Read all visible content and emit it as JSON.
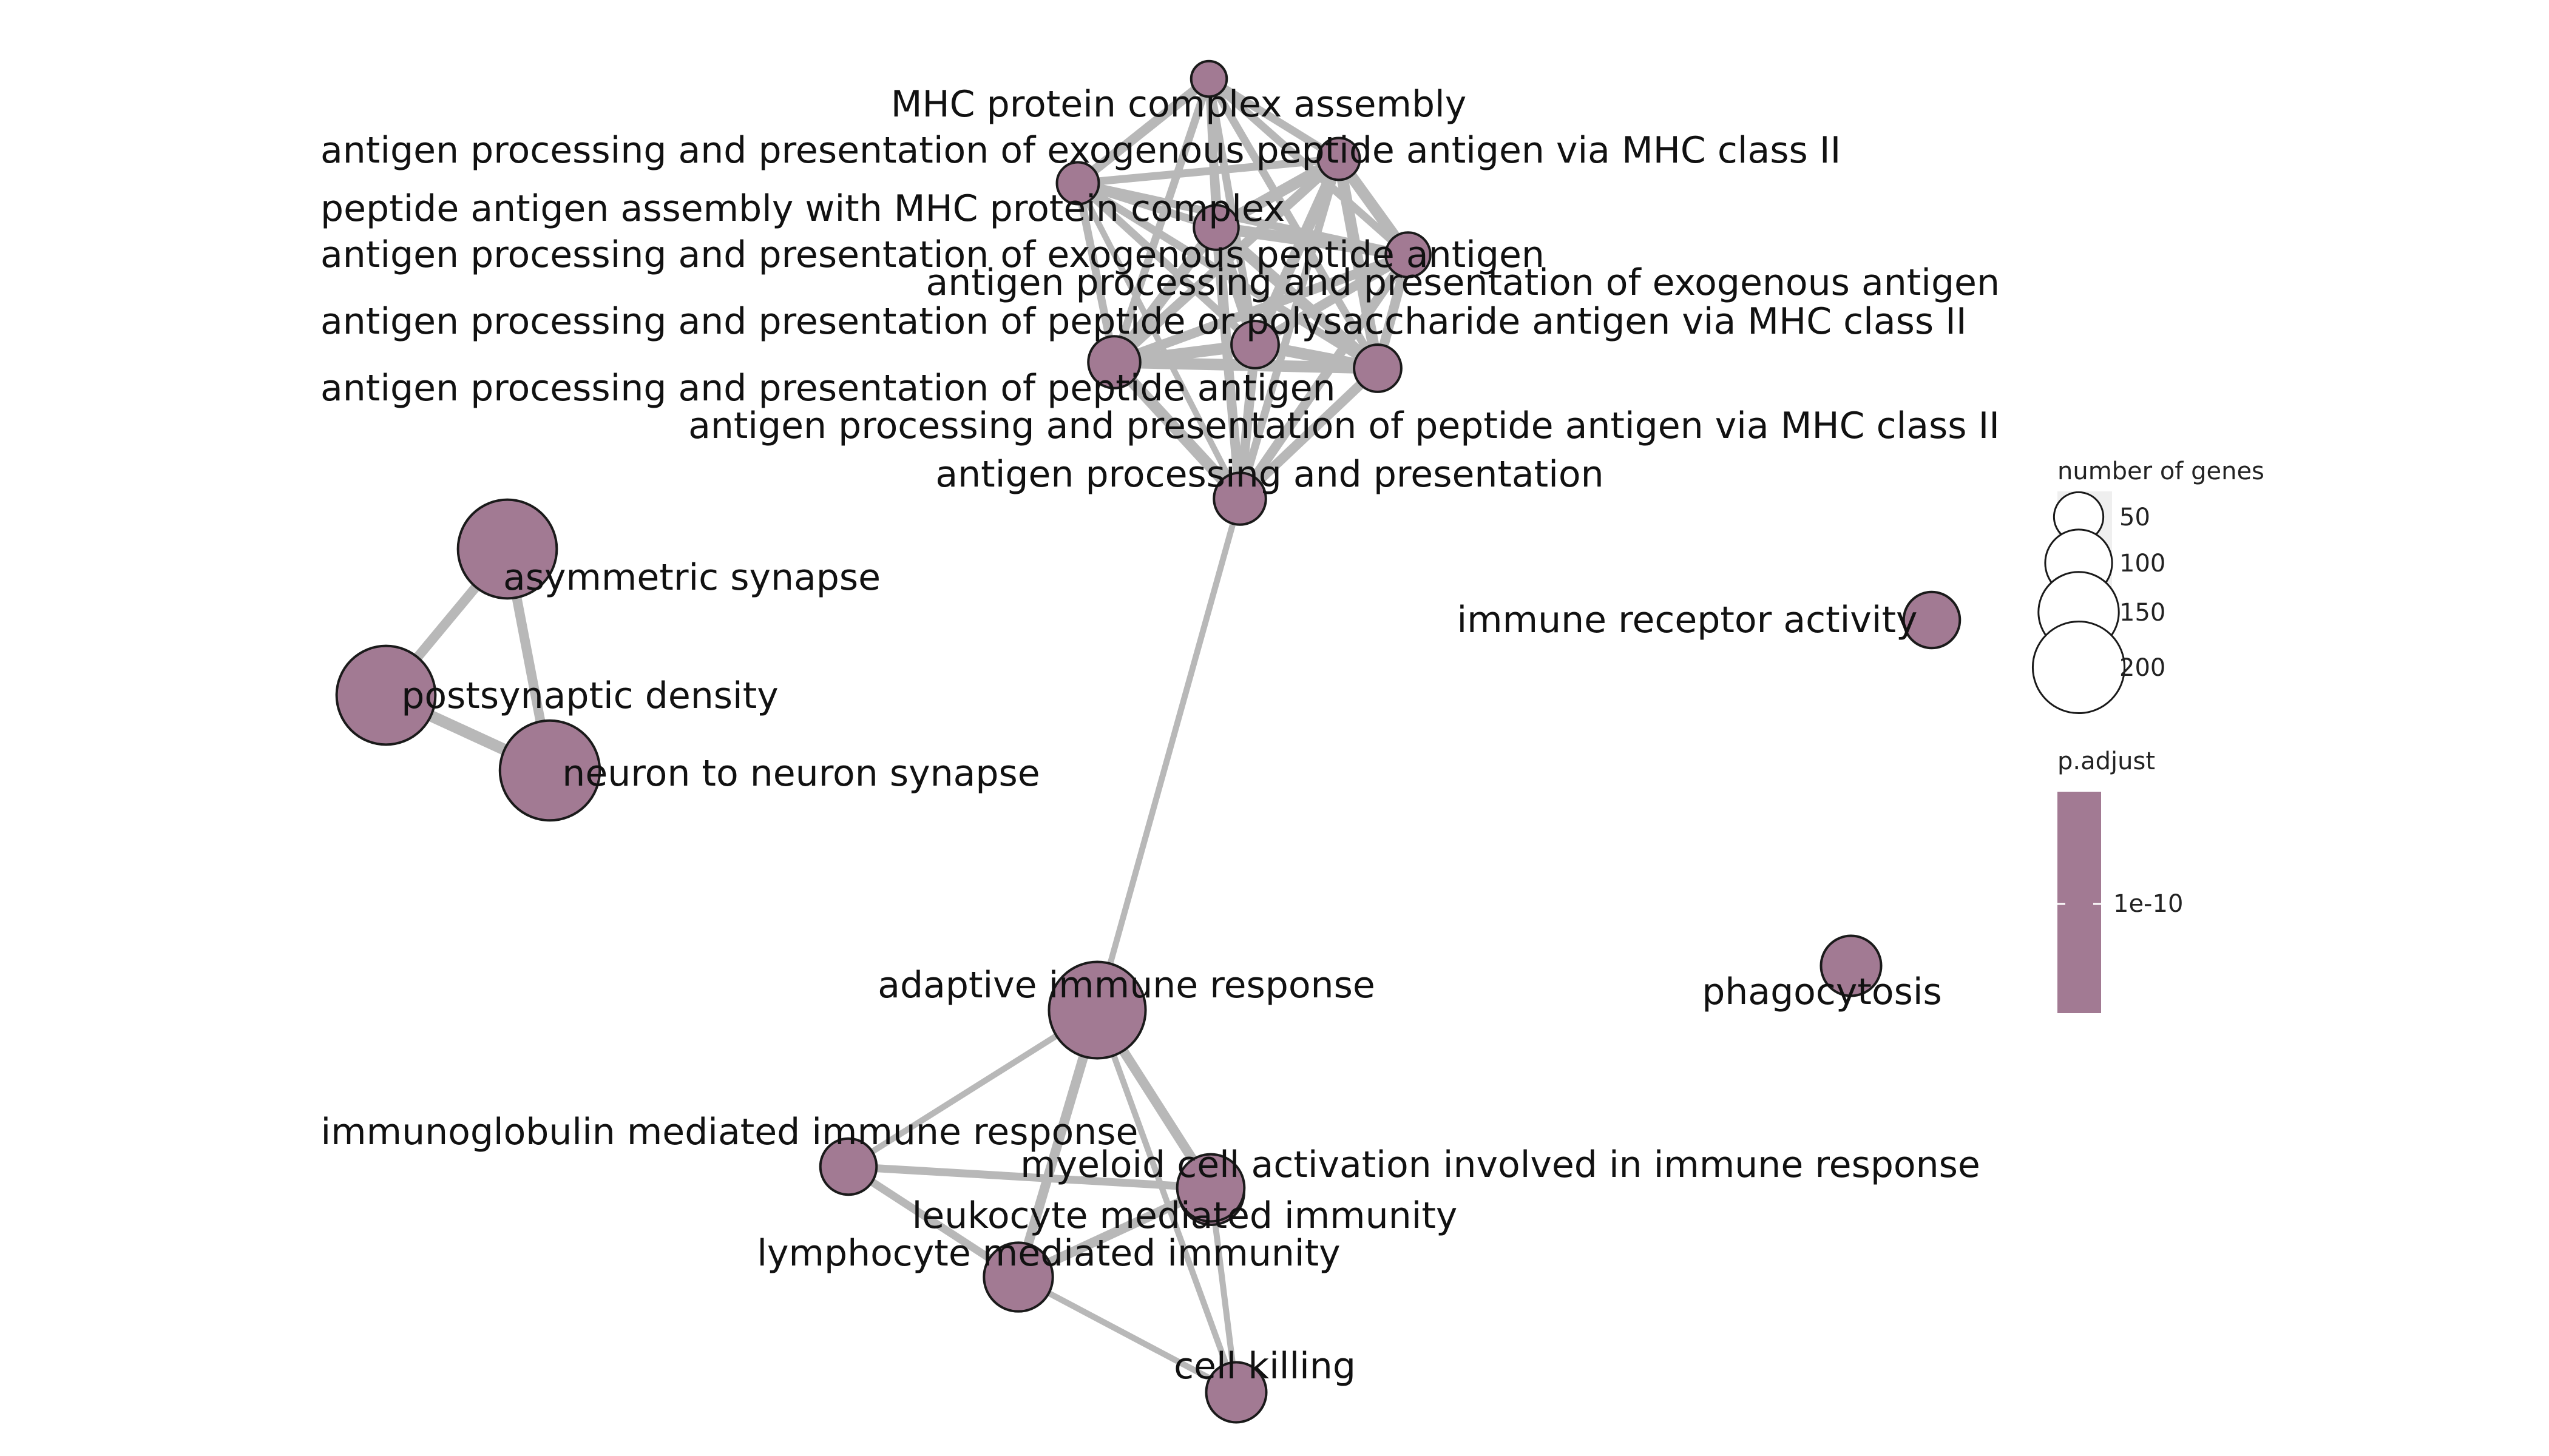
{
  "figure": {
    "node_fill": "#a27a93",
    "node_stroke": "#1a1a1a",
    "edge_color": "#b8b8b8",
    "legend_panel_color": "#efefef"
  },
  "nodes": [
    {
      "id": "mhc_assembly",
      "label": "MHC protein complex assembly",
      "genes": 20
    },
    {
      "id": "app_exo_pep_mhc2",
      "label": "antigen processing and presentation of exogenous peptide antigen via MHC class II",
      "genes": 30
    },
    {
      "id": "pep_assembly_mhc",
      "label": "peptide antigen assembly with MHC protein complex",
      "genes": 30
    },
    {
      "id": "app_exo_pep",
      "label": "antigen processing and presentation of exogenous peptide antigen",
      "genes": 35
    },
    {
      "id": "app_exo_antigen",
      "label": "antigen processing and presentation of exogenous antigen",
      "genes": 35
    },
    {
      "id": "app_pep_poly_mhc2",
      "label": "antigen processing and presentation of peptide or polysaccharide antigen via MHC class II",
      "genes": 40
    },
    {
      "id": "app_pep",
      "label": "antigen processing and presentation of peptide antigen",
      "genes": 50
    },
    {
      "id": "app_pep_mhc2",
      "label": "antigen processing and presentation of peptide antigen via MHC class II",
      "genes": 40
    },
    {
      "id": "app",
      "label": "antigen processing and presentation",
      "genes": 50
    },
    {
      "id": "asym_synapse",
      "label": "asymmetric synapse",
      "genes": 210
    },
    {
      "id": "psd",
      "label": "postsynaptic density",
      "genes": 210
    },
    {
      "id": "n2n_synapse",
      "label": "neuron to neuron synapse",
      "genes": 215
    },
    {
      "id": "immune_receptor",
      "label": "immune receptor activity",
      "genes": 60
    },
    {
      "id": "phagocytosis",
      "label": "phagocytosis",
      "genes": 70
    },
    {
      "id": "adaptive",
      "label": "adaptive immune response",
      "genes": 200
    },
    {
      "id": "ig_mediated",
      "label": "immunoglobulin mediated immune response",
      "genes": 60
    },
    {
      "id": "myeloid",
      "label": "myeloid cell activation involved in immune response",
      "genes": 85
    },
    {
      "id": "leukocyte",
      "label": "leukocyte mediated immunity",
      "genes": 90
    },
    {
      "id": "lymphocyte",
      "label": "lymphocyte mediated immunity",
      "genes": 95
    },
    {
      "id": "cell_killing",
      "label": "cell killing",
      "genes": 70
    }
  ],
  "edges": [
    [
      "mhc_assembly",
      "app_exo_pep_mhc2",
      3
    ],
    [
      "mhc_assembly",
      "pep_assembly_mhc",
      4
    ],
    [
      "mhc_assembly",
      "app_exo_pep",
      3
    ],
    [
      "mhc_assembly",
      "app_exo_antigen",
      3
    ],
    [
      "mhc_assembly",
      "app_pep_poly_mhc2",
      3
    ],
    [
      "mhc_assembly",
      "app_pep",
      3
    ],
    [
      "mhc_assembly",
      "app_pep_mhc2",
      3
    ],
    [
      "mhc_assembly",
      "app",
      2
    ],
    [
      "app_exo_pep_mhc2",
      "pep_assembly_mhc",
      3
    ],
    [
      "app_exo_pep_mhc2",
      "app_exo_pep",
      5
    ],
    [
      "app_exo_pep_mhc2",
      "app_exo_antigen",
      5
    ],
    [
      "app_exo_pep_mhc2",
      "app_pep_poly_mhc2",
      5
    ],
    [
      "app_exo_pep_mhc2",
      "app_pep",
      4
    ],
    [
      "app_exo_pep_mhc2",
      "app_pep_mhc2",
      5
    ],
    [
      "app_exo_pep_mhc2",
      "app",
      3
    ],
    [
      "pep_assembly_mhc",
      "app_exo_pep",
      3
    ],
    [
      "pep_assembly_mhc",
      "app_exo_antigen",
      3
    ],
    [
      "pep_assembly_mhc",
      "app_pep_poly_mhc2",
      3
    ],
    [
      "pep_assembly_mhc",
      "app_pep",
      3
    ],
    [
      "pep_assembly_mhc",
      "app_pep_mhc2",
      3
    ],
    [
      "pep_assembly_mhc",
      "app",
      2
    ],
    [
      "app_exo_pep",
      "app_exo_antigen",
      5
    ],
    [
      "app_exo_pep",
      "app_pep_poly_mhc2",
      5
    ],
    [
      "app_exo_pep",
      "app_pep",
      5
    ],
    [
      "app_exo_pep",
      "app_pep_mhc2",
      5
    ],
    [
      "app_exo_pep",
      "app",
      4
    ],
    [
      "app_exo_antigen",
      "app_pep_poly_mhc2",
      4
    ],
    [
      "app_exo_antigen",
      "app_pep",
      4
    ],
    [
      "app_exo_antigen",
      "app_pep_mhc2",
      4
    ],
    [
      "app_exo_antigen",
      "app",
      4
    ],
    [
      "app_pep_poly_mhc2",
      "app_pep",
      5
    ],
    [
      "app_pep_poly_mhc2",
      "app_pep_mhc2",
      5
    ],
    [
      "app_pep_poly_mhc2",
      "app",
      4
    ],
    [
      "app_pep",
      "app_pep_mhc2",
      5
    ],
    [
      "app_pep",
      "app",
      5
    ],
    [
      "app_pep_mhc2",
      "app",
      4
    ],
    [
      "app",
      "adaptive",
      2
    ],
    [
      "asym_synapse",
      "psd",
      4
    ],
    [
      "asym_synapse",
      "n2n_synapse",
      4
    ],
    [
      "psd",
      "n2n_synapse",
      5
    ],
    [
      "adaptive",
      "ig_mediated",
      2
    ],
    [
      "adaptive",
      "myeloid",
      2
    ],
    [
      "adaptive",
      "leukocyte",
      4
    ],
    [
      "adaptive",
      "lymphocyte",
      4
    ],
    [
      "adaptive",
      "cell_killing",
      2
    ],
    [
      "ig_mediated",
      "leukocyte",
      3
    ],
    [
      "ig_mediated",
      "lymphocyte",
      3
    ],
    [
      "myeloid",
      "leukocyte",
      3
    ],
    [
      "leukocyte",
      "lymphocyte",
      4
    ],
    [
      "leukocyte",
      "cell_killing",
      2
    ],
    [
      "lymphocyte",
      "cell_killing",
      2
    ]
  ],
  "legend": {
    "size_title": "number of genes",
    "size_values": [
      50,
      100,
      150,
      200
    ],
    "size_labels": [
      "50",
      "100",
      "150",
      "200"
    ],
    "color_title": "p.adjust",
    "color_tick_label": "1e-10"
  }
}
